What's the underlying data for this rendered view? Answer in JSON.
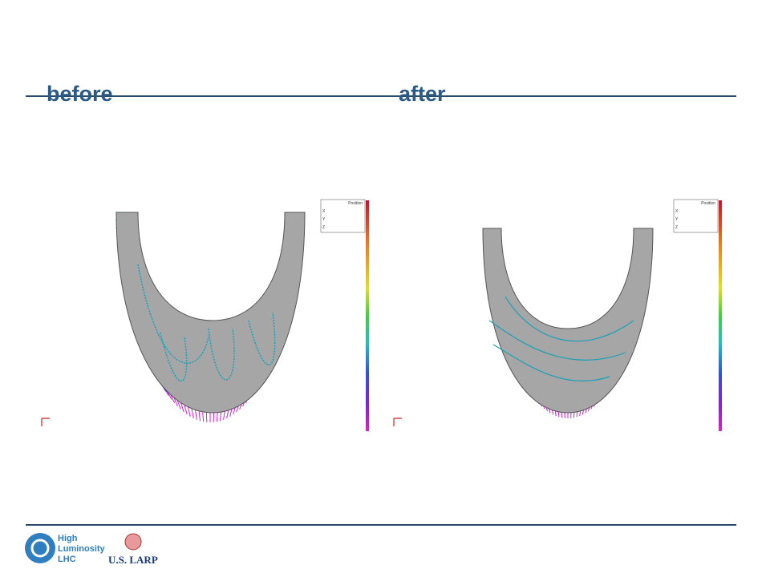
{
  "slide": {
    "panels": [
      {
        "label": "before",
        "legend": {
          "title": "Position",
          "rows": [
            "X",
            "Y",
            "Z"
          ]
        }
      },
      {
        "label": "after",
        "legend": {
          "title": "Position",
          "rows": [
            "X",
            "Y",
            "Z"
          ]
        }
      }
    ],
    "footer": {
      "logo_lines": [
        "High",
        "Luminosity",
        "LHC"
      ],
      "partner": "U.S. LARP"
    }
  }
}
